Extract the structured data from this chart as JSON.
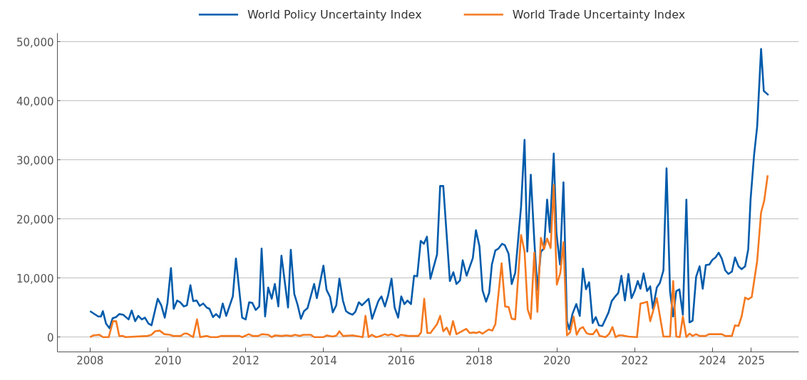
{
  "chart_data": {
    "type": "line",
    "xlim": [
      2007.16,
      2026.22
    ],
    "ylim": [
      -2500,
      51500
    ],
    "xticks": [
      2008,
      2010,
      2012,
      2014,
      2016,
      2018,
      2020,
      2022,
      2024,
      2025
    ],
    "yticks": [
      {
        "value": 0,
        "label": "0"
      },
      {
        "value": 10000,
        "label": "10,000"
      },
      {
        "value": 20000,
        "label": "20,000"
      },
      {
        "value": 30000,
        "label": "30,000"
      },
      {
        "value": 40000,
        "label": "40,000"
      },
      {
        "value": 50000,
        "label": "50,000"
      }
    ],
    "grid": "y",
    "legend": "top",
    "line_style": "solid",
    "marker": "none",
    "series": [
      {
        "name": "World Policy Uncertainty Index",
        "color": "#005bab",
        "x": [
          2008.0,
          2008.21,
          2008.28,
          2008.33,
          2008.41,
          2008.5,
          2008.58,
          2008.67,
          2008.75,
          2008.85,
          2008.99,
          2009.07,
          2009.16,
          2009.24,
          2009.33,
          2009.41,
          2009.5,
          2009.58,
          2009.74,
          2009.83,
          2009.92,
          2009.99,
          2010.08,
          2010.15,
          2010.24,
          2010.32,
          2010.41,
          2010.49,
          2010.58,
          2010.65,
          2010.74,
          2010.82,
          2010.91,
          2011.0,
          2011.07,
          2011.16,
          2011.24,
          2011.33,
          2011.41,
          2011.5,
          2011.67,
          2011.75,
          2011.91,
          2012.0,
          2012.09,
          2012.17,
          2012.26,
          2012.35,
          2012.41,
          2012.5,
          2012.58,
          2012.67,
          2012.75,
          2012.84,
          2012.92,
          2013.09,
          2013.16,
          2013.25,
          2013.33,
          2013.42,
          2013.5,
          2013.59,
          2013.76,
          2013.83,
          2014.0,
          2014.08,
          2014.17,
          2014.24,
          2014.33,
          2014.41,
          2014.5,
          2014.58,
          2014.67,
          2014.75,
          2014.82,
          2014.91,
          2014.99,
          2015.16,
          2015.25,
          2015.41,
          2015.49,
          2015.58,
          2015.66,
          2015.75,
          2015.83,
          2015.92,
          2016.0,
          2016.08,
          2016.16,
          2016.25,
          2016.33,
          2016.41,
          2016.5,
          2016.58,
          2016.66,
          2016.75,
          2016.92,
          2017.0,
          2017.08,
          2017.25,
          2017.34,
          2017.42,
          2017.51,
          2017.58,
          2017.68,
          2017.84,
          2017.92,
          2018.01,
          2018.09,
          2018.18,
          2018.26,
          2018.33,
          2018.42,
          2018.5,
          2018.59,
          2018.66,
          2018.76,
          2018.84,
          2018.93,
          2019.08,
          2019.17,
          2019.24,
          2019.33,
          2019.42,
          2019.5,
          2019.59,
          2019.67,
          2019.75,
          2019.82,
          2019.92,
          2019.99,
          2020.08,
          2020.17,
          2020.26,
          2020.32,
          2020.4,
          2020.5,
          2020.59,
          2020.67,
          2020.75,
          2020.83,
          2020.92,
          2021.0,
          2021.08,
          2021.17,
          2021.33,
          2021.41,
          2021.49,
          2021.58,
          2021.66,
          2021.75,
          2021.84,
          2021.92,
          2022.0,
          2022.08,
          2022.15,
          2022.23,
          2022.32,
          2022.4,
          2022.47,
          2022.57,
          2022.65,
          2022.74,
          2022.82,
          2022.91,
          2022.99,
          2023.07,
          2023.15,
          2023.24,
          2023.33,
          2023.41,
          2023.49,
          2023.58,
          2023.67,
          2023.75,
          2023.83,
          2023.92,
          2024.0,
          2024.08,
          2024.16,
          2024.24,
          2024.33,
          2024.41,
          2024.5,
          2024.58,
          2024.67,
          2024.75,
          2024.84,
          2024.92,
          2024.98,
          2025.07,
          2025.15,
          2025.25,
          2025.32,
          2025.44
        ],
        "values": [
          4400,
          3500,
          3500,
          4400,
          2300,
          1500,
          3200,
          3400,
          3900,
          3800,
          3000,
          4500,
          2700,
          3600,
          3000,
          3300,
          2300,
          2000,
          6500,
          5400,
          3300,
          5800,
          11700,
          4800,
          6200,
          5900,
          5200,
          5400,
          8800,
          6100,
          6200,
          5300,
          5700,
          5000,
          4800,
          3400,
          3900,
          3300,
          5700,
          3600,
          6900,
          13300,
          3300,
          3000,
          5900,
          5800,
          4600,
          5200,
          15000,
          3500,
          8400,
          6500,
          9000,
          5200,
          13800,
          5000,
          14800,
          7300,
          5600,
          3100,
          4400,
          4900,
          9000,
          6600,
          12100,
          8000,
          6800,
          4200,
          5400,
          9900,
          6200,
          4400,
          4000,
          3800,
          4300,
          5900,
          5400,
          6500,
          3100,
          6100,
          6900,
          5200,
          7000,
          9900,
          5000,
          3300,
          6900,
          5600,
          6200,
          5600,
          10400,
          10300,
          16300,
          15800,
          17000,
          9900,
          14000,
          25600,
          25600,
          9500,
          11000,
          9000,
          9600,
          13000,
          10400,
          13400,
          18100,
          15400,
          7900,
          6000,
          7500,
          12300,
          14700,
          15000,
          15800,
          15600,
          14100,
          9000,
          10900,
          22100,
          33400,
          14500,
          27500,
          16400,
          8000,
          14500,
          15000,
          23300,
          17800,
          31100,
          17600,
          12300,
          26200,
          2700,
          1300,
          3900,
          5600,
          3600,
          11600,
          8100,
          9300,
          2400,
          3400,
          2000,
          1900,
          4200,
          6100,
          6800,
          7500,
          10400,
          6200,
          10700,
          6600,
          7800,
          9500,
          8200,
          10800,
          7800,
          8600,
          4800,
          8400,
          9200,
          11300,
          28600,
          7800,
          3500,
          7800,
          8100,
          3800,
          23300,
          2500,
          2800,
          10200,
          12000,
          8200,
          12200,
          12300,
          13100,
          13500,
          14300,
          13300,
          11300,
          10700,
          11100,
          13500,
          12000,
          11500,
          12000,
          14900,
          23300,
          30800,
          35700,
          48800,
          41700,
          41000
        ]
      },
      {
        "name": "World Trade Uncertainty Index",
        "color": "#f47920",
        "x": [
          2008.0,
          2008.08,
          2008.24,
          2008.33,
          2008.48,
          2008.59,
          2008.67,
          2008.75,
          2008.85,
          2008.91,
          2009.48,
          2009.58,
          2009.67,
          2009.79,
          2009.91,
          2010.06,
          2010.13,
          2010.33,
          2010.42,
          2010.5,
          2010.65,
          2010.75,
          2010.83,
          2011.0,
          2011.09,
          2011.28,
          2011.36,
          2011.84,
          2011.91,
          2012.08,
          2012.18,
          2012.32,
          2012.42,
          2012.58,
          2012.67,
          2012.76,
          2012.93,
          2013.04,
          2013.18,
          2013.27,
          2013.39,
          2013.48,
          2013.67,
          2013.76,
          2014.0,
          2014.08,
          2014.24,
          2014.34,
          2014.41,
          2014.5,
          2014.75,
          2015.01,
          2015.08,
          2015.16,
          2015.24,
          2015.35,
          2015.42,
          2015.58,
          2015.66,
          2015.75,
          2015.9,
          2016.0,
          2016.18,
          2016.44,
          2016.51,
          2016.59,
          2016.67,
          2016.75,
          2016.92,
          2017.0,
          2017.08,
          2017.17,
          2017.25,
          2017.33,
          2017.42,
          2017.67,
          2017.76,
          2017.87,
          2017.93,
          2018.01,
          2018.09,
          2018.25,
          2018.34,
          2018.42,
          2018.58,
          2018.67,
          2018.76,
          2018.84,
          2018.93,
          2019.08,
          2019.17,
          2019.25,
          2019.33,
          2019.42,
          2019.5,
          2019.59,
          2019.67,
          2019.75,
          2019.84,
          2019.92,
          2020.0,
          2020.09,
          2020.17,
          2020.26,
          2020.34,
          2020.43,
          2020.51,
          2020.59,
          2020.67,
          2020.76,
          2020.84,
          2020.93,
          2021.02,
          2021.1,
          2021.25,
          2021.34,
          2021.43,
          2021.51,
          2021.59,
          2021.68,
          2021.84,
          2022.06,
          2022.15,
          2022.23,
          2022.32,
          2022.4,
          2022.57,
          2022.74,
          2022.91,
          2022.99,
          2023.07,
          2023.16,
          2023.24,
          2023.33,
          2023.41,
          2023.49,
          2023.58,
          2023.67,
          2023.82,
          2023.91,
          2024.24,
          2024.33,
          2024.5,
          2024.58,
          2024.67,
          2024.75,
          2024.84,
          2024.92,
          2025.01,
          2025.15,
          2025.25,
          2025.33,
          2025.42
        ],
        "values": [
          0,
          300,
          400,
          0,
          0,
          2700,
          2700,
          200,
          200,
          0,
          200,
          400,
          1000,
          1100,
          500,
          400,
          200,
          200,
          600,
          600,
          0,
          3000,
          0,
          200,
          0,
          0,
          200,
          200,
          0,
          500,
          200,
          200,
          500,
          400,
          0,
          300,
          200,
          300,
          200,
          400,
          200,
          400,
          400,
          0,
          0,
          300,
          100,
          300,
          1000,
          200,
          300,
          0,
          3600,
          0,
          400,
          0,
          100,
          500,
          300,
          500,
          100,
          400,
          200,
          200,
          800,
          6500,
          700,
          700,
          2200,
          3600,
          1000,
          1600,
          400,
          2700,
          500,
          1400,
          700,
          800,
          700,
          900,
          600,
          1300,
          1100,
          2200,
          12500,
          5200,
          5100,
          3100,
          3000,
          17300,
          14500,
          4700,
          3100,
          14300,
          4300,
          16800,
          14900,
          16700,
          15100,
          25800,
          8900,
          10900,
          16100,
          300,
          800,
          3500,
          400,
          1400,
          1700,
          700,
          500,
          500,
          1300,
          200,
          0,
          500,
          1700,
          0,
          300,
          300,
          100,
          0,
          5700,
          5800,
          6000,
          2700,
          6600,
          100,
          100,
          9500,
          100,
          0,
          3500,
          0,
          600,
          200,
          500,
          200,
          200,
          500,
          500,
          200,
          200,
          2000,
          1900,
          3500,
          6700,
          6400,
          6800,
          12900,
          21100,
          23100,
          27400
        ]
      }
    ]
  }
}
